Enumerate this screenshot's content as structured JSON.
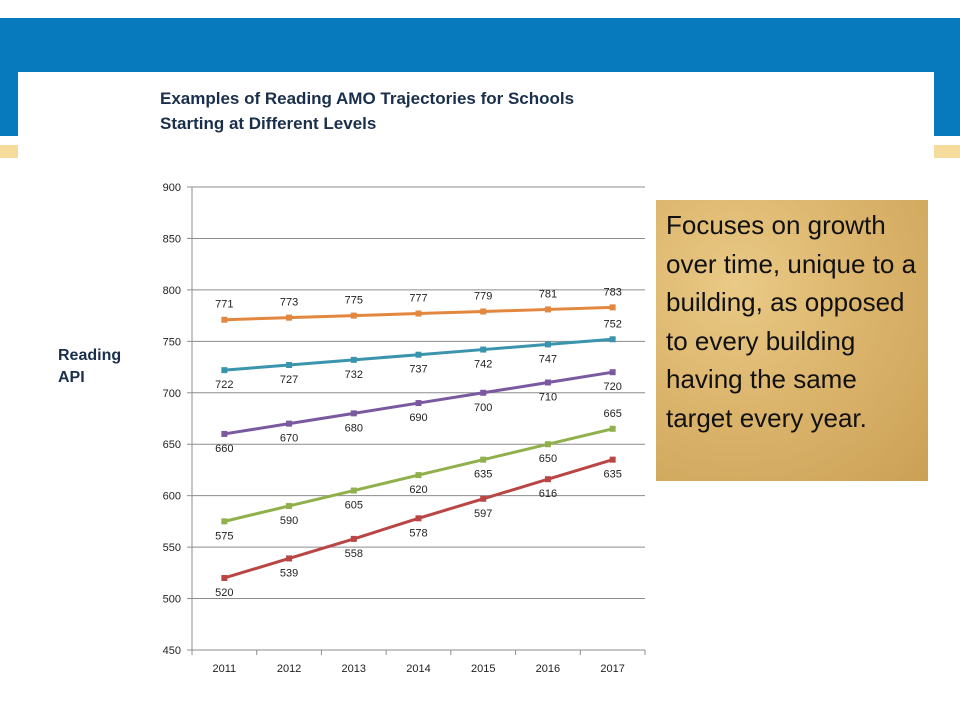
{
  "callout": {
    "text": "Focuses on growth over time, unique to a building, as opposed to every building having the same target every year."
  },
  "chart_data": {
    "type": "line",
    "title_line1": "Examples of Reading AMO Trajectories for Schools",
    "title_line2": "Starting at Different Levels",
    "ylabel_line1": "Reading",
    "ylabel_line2": "API",
    "xlabel": "",
    "x": [
      "2011",
      "2012",
      "2013",
      "2014",
      "2015",
      "2016",
      "2017"
    ],
    "ylim": [
      450,
      900
    ],
    "yticks": [
      450,
      500,
      550,
      600,
      650,
      700,
      750,
      800,
      850,
      900
    ],
    "grid": true,
    "legend": "none",
    "series": [
      {
        "color": "#e2873d",
        "values": [
          771,
          773,
          775,
          777,
          779,
          781,
          783
        ],
        "label_pos": "above"
      },
      {
        "color": "#3b94ad",
        "values": [
          722,
          727,
          732,
          737,
          742,
          747,
          752
        ],
        "label_pos": "below_then_above"
      },
      {
        "color": "#7a59a0",
        "values": [
          660,
          670,
          680,
          690,
          700,
          710,
          720
        ],
        "label_pos": "below"
      },
      {
        "color": "#8fb04a",
        "values": [
          575,
          590,
          605,
          620,
          635,
          650,
          665
        ],
        "label_pos": "below_then_above"
      },
      {
        "color": "#b94545",
        "values": [
          520,
          539,
          558,
          578,
          597,
          616,
          635
        ],
        "label_pos": "below"
      }
    ]
  }
}
